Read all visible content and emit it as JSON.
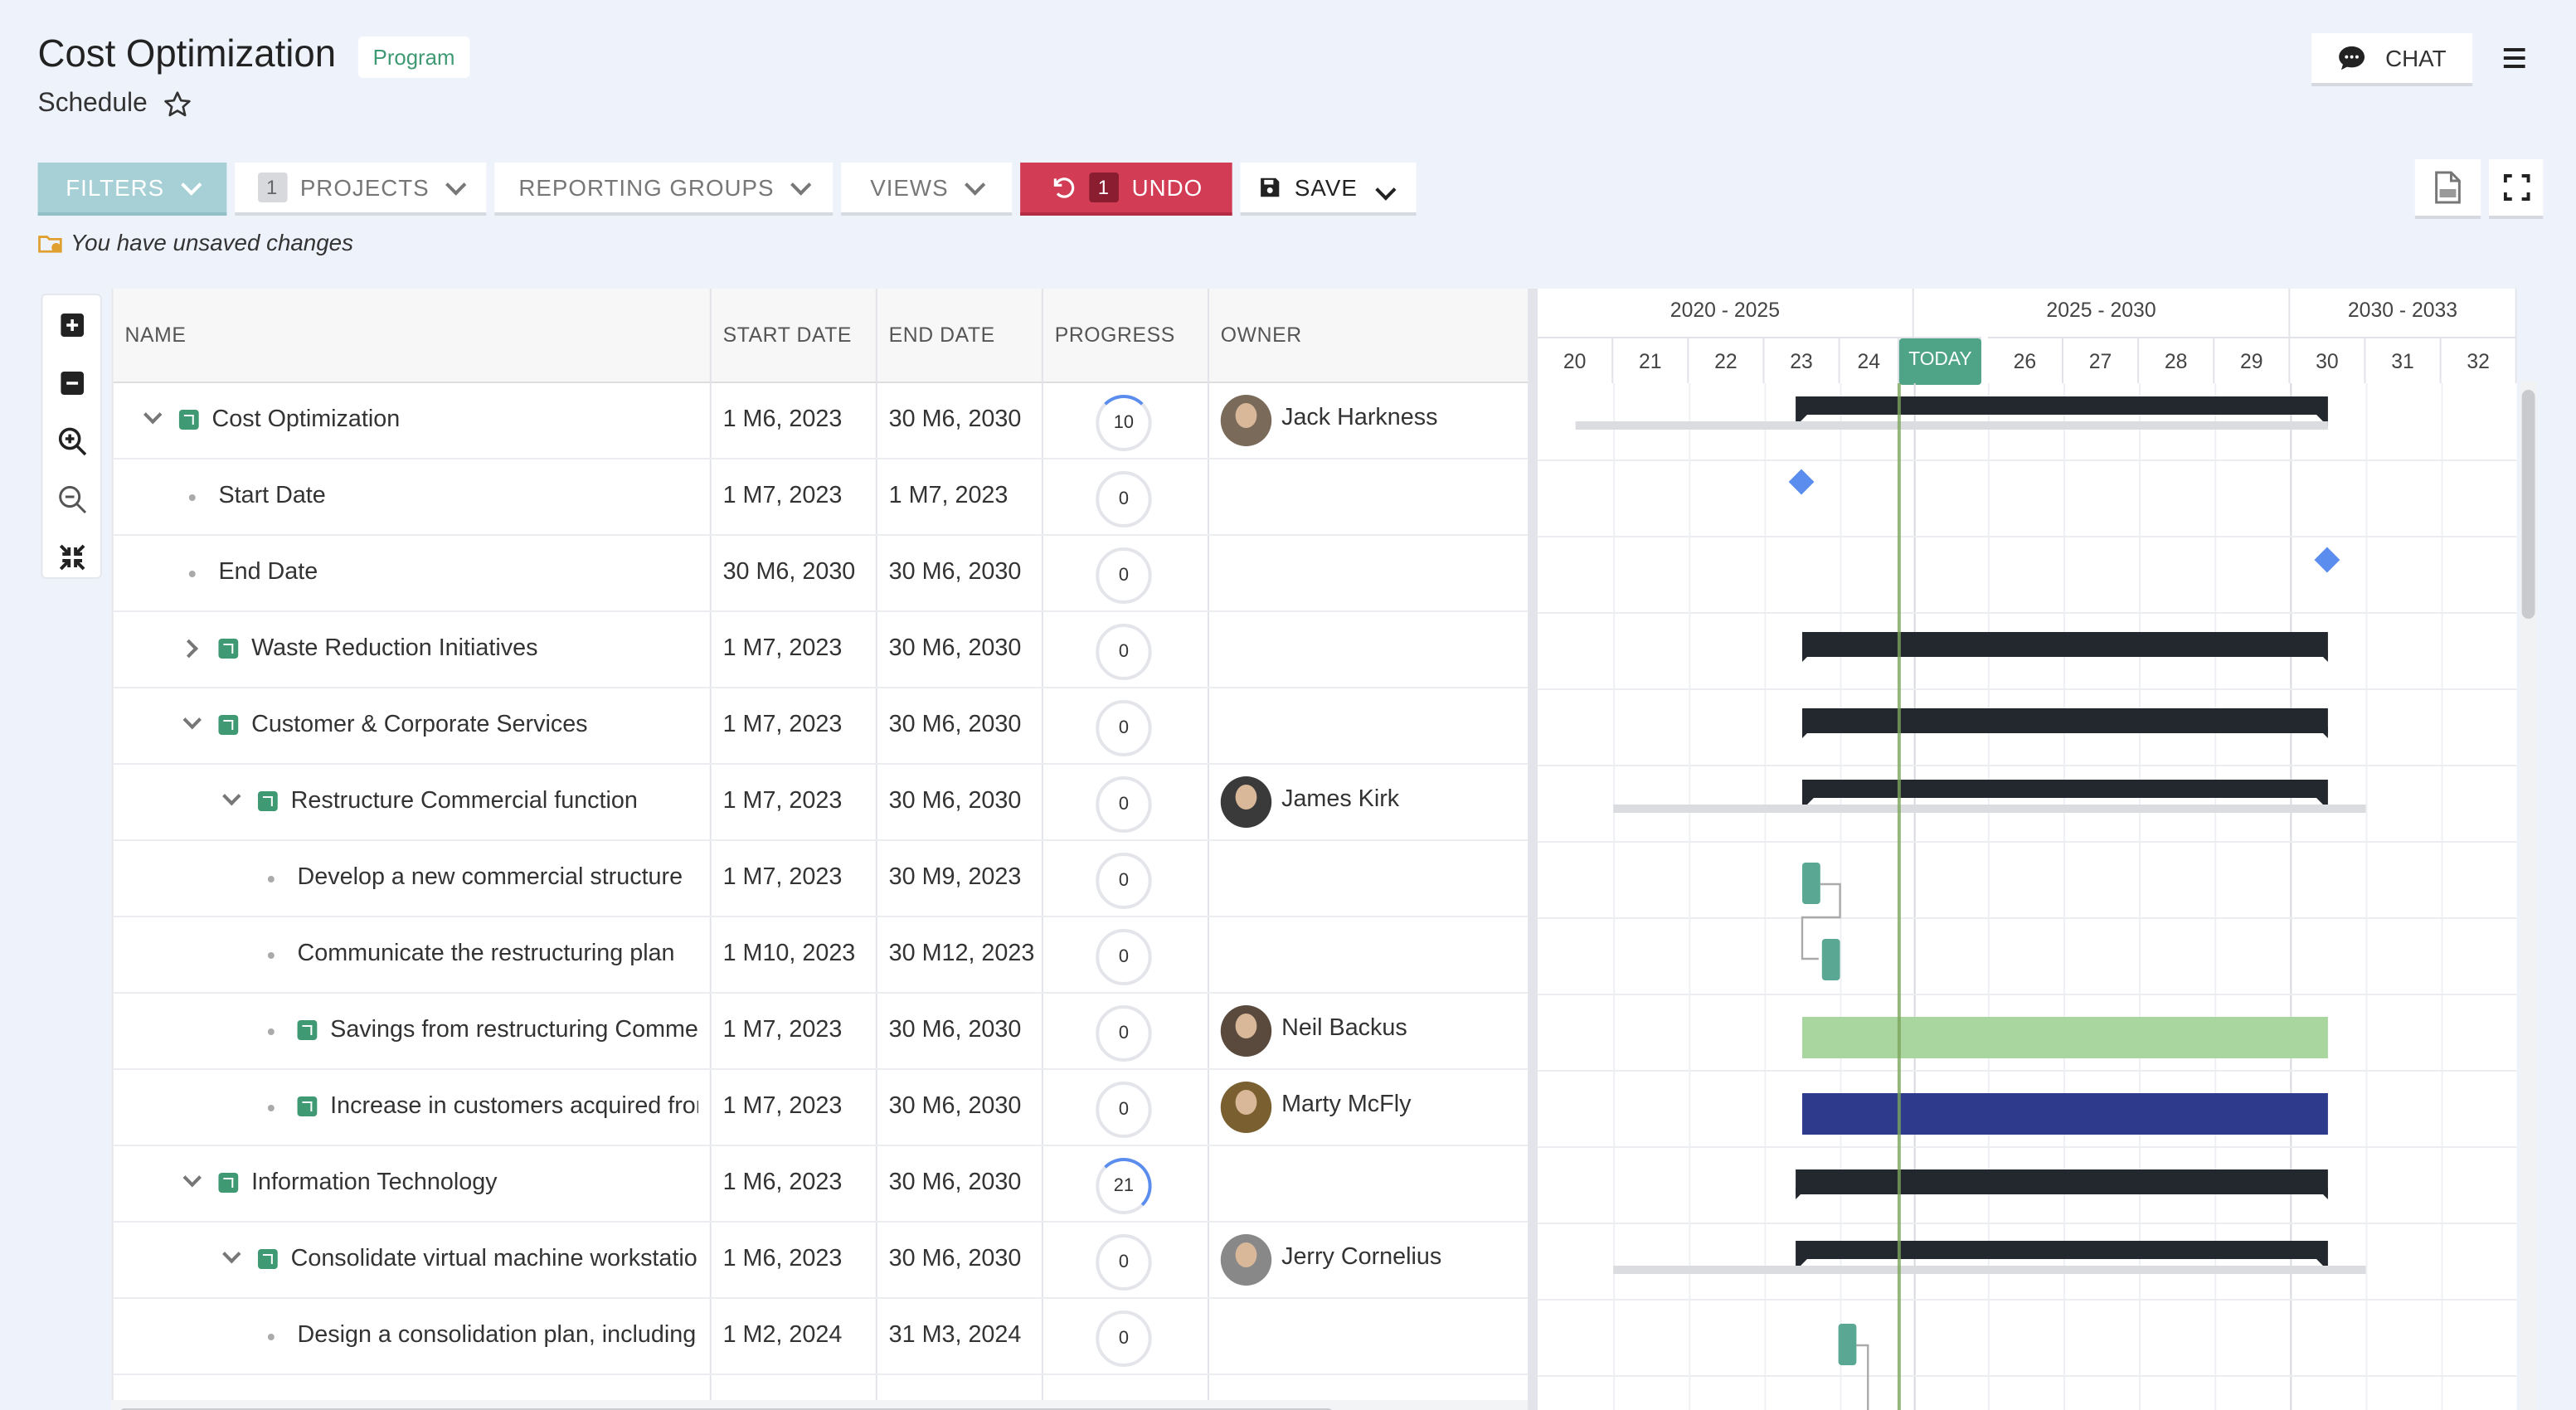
{
  "header": {
    "title": "Cost Optimization",
    "badge": "Program",
    "subtitle": "Schedule",
    "chat_label": "CHAT"
  },
  "toolbar": {
    "filters": "FILTERS",
    "projects_count": "1",
    "projects": "PROJECTS",
    "reporting_groups": "REPORTING GROUPS",
    "views": "VIEWS",
    "undo_count": "1",
    "undo": "UNDO",
    "save": "SAVE",
    "unsaved_message": "You have unsaved changes"
  },
  "columns": {
    "name": "NAME",
    "start": "START DATE",
    "end": "END DATE",
    "progress": "PROGRESS",
    "owner": "OWNER"
  },
  "rows": [
    {
      "name": "Cost Optimization",
      "start": "1 M6, 2023",
      "end": "30 M6, 2030",
      "progress": "10",
      "owner": "Jack Harkness"
    },
    {
      "name": "Start Date",
      "start": "1 M7, 2023",
      "end": "1 M7, 2023",
      "progress": "0",
      "owner": ""
    },
    {
      "name": "End Date",
      "start": "30 M6, 2030",
      "end": "30 M6, 2030",
      "progress": "0",
      "owner": ""
    },
    {
      "name": "Waste Reduction Initiatives",
      "start": "1 M7, 2023",
      "end": "30 M6, 2030",
      "progress": "0",
      "owner": ""
    },
    {
      "name": "Customer & Corporate Services",
      "start": "1 M7, 2023",
      "end": "30 M6, 2030",
      "progress": "0",
      "owner": ""
    },
    {
      "name": "Restructure Commercial function",
      "start": "1 M7, 2023",
      "end": "30 M6, 2030",
      "progress": "0",
      "owner": "James Kirk"
    },
    {
      "name": "Develop a new commercial structure",
      "start": "1 M7, 2023",
      "end": "30 M9, 2023",
      "progress": "0",
      "owner": ""
    },
    {
      "name": "Communicate the restructuring plan",
      "start": "1 M10, 2023",
      "end": "30 M12, 2023",
      "progress": "0",
      "owner": ""
    },
    {
      "name": "Savings from restructuring Commercial",
      "start": "1 M7, 2023",
      "end": "30 M6, 2030",
      "progress": "0",
      "owner": "Neil Backus"
    },
    {
      "name": "Increase in customers acquired from",
      "start": "1 M7, 2023",
      "end": "30 M6, 2030",
      "progress": "0",
      "owner": "Marty McFly"
    },
    {
      "name": "Information Technology",
      "start": "1 M6, 2023",
      "end": "30 M6, 2030",
      "progress": "21",
      "owner": ""
    },
    {
      "name": "Consolidate virtual machine workstations",
      "start": "1 M6, 2023",
      "end": "30 M6, 2030",
      "progress": "0",
      "owner": "Jerry Cornelius"
    },
    {
      "name": "Design a consolidation plan, including",
      "start": "1 M2, 2024",
      "end": "31 M3, 2024",
      "progress": "0",
      "owner": ""
    }
  ],
  "gantt": {
    "periods": [
      "2020 - 2025",
      "2025 - 2030",
      "2030 - 2033"
    ],
    "ticks": [
      "20",
      "21",
      "22",
      "23",
      "24",
      "TODAY",
      "26",
      "27",
      "28",
      "29",
      "30",
      "31",
      "32"
    ],
    "today_label": "TODAY",
    "colors": {
      "summary": "#23272e",
      "task": "#5aa894",
      "savings": "#a9d59f",
      "customers": "#2e3a8c",
      "milestone": "#5b8def",
      "today_line": "#7aa55a"
    }
  }
}
